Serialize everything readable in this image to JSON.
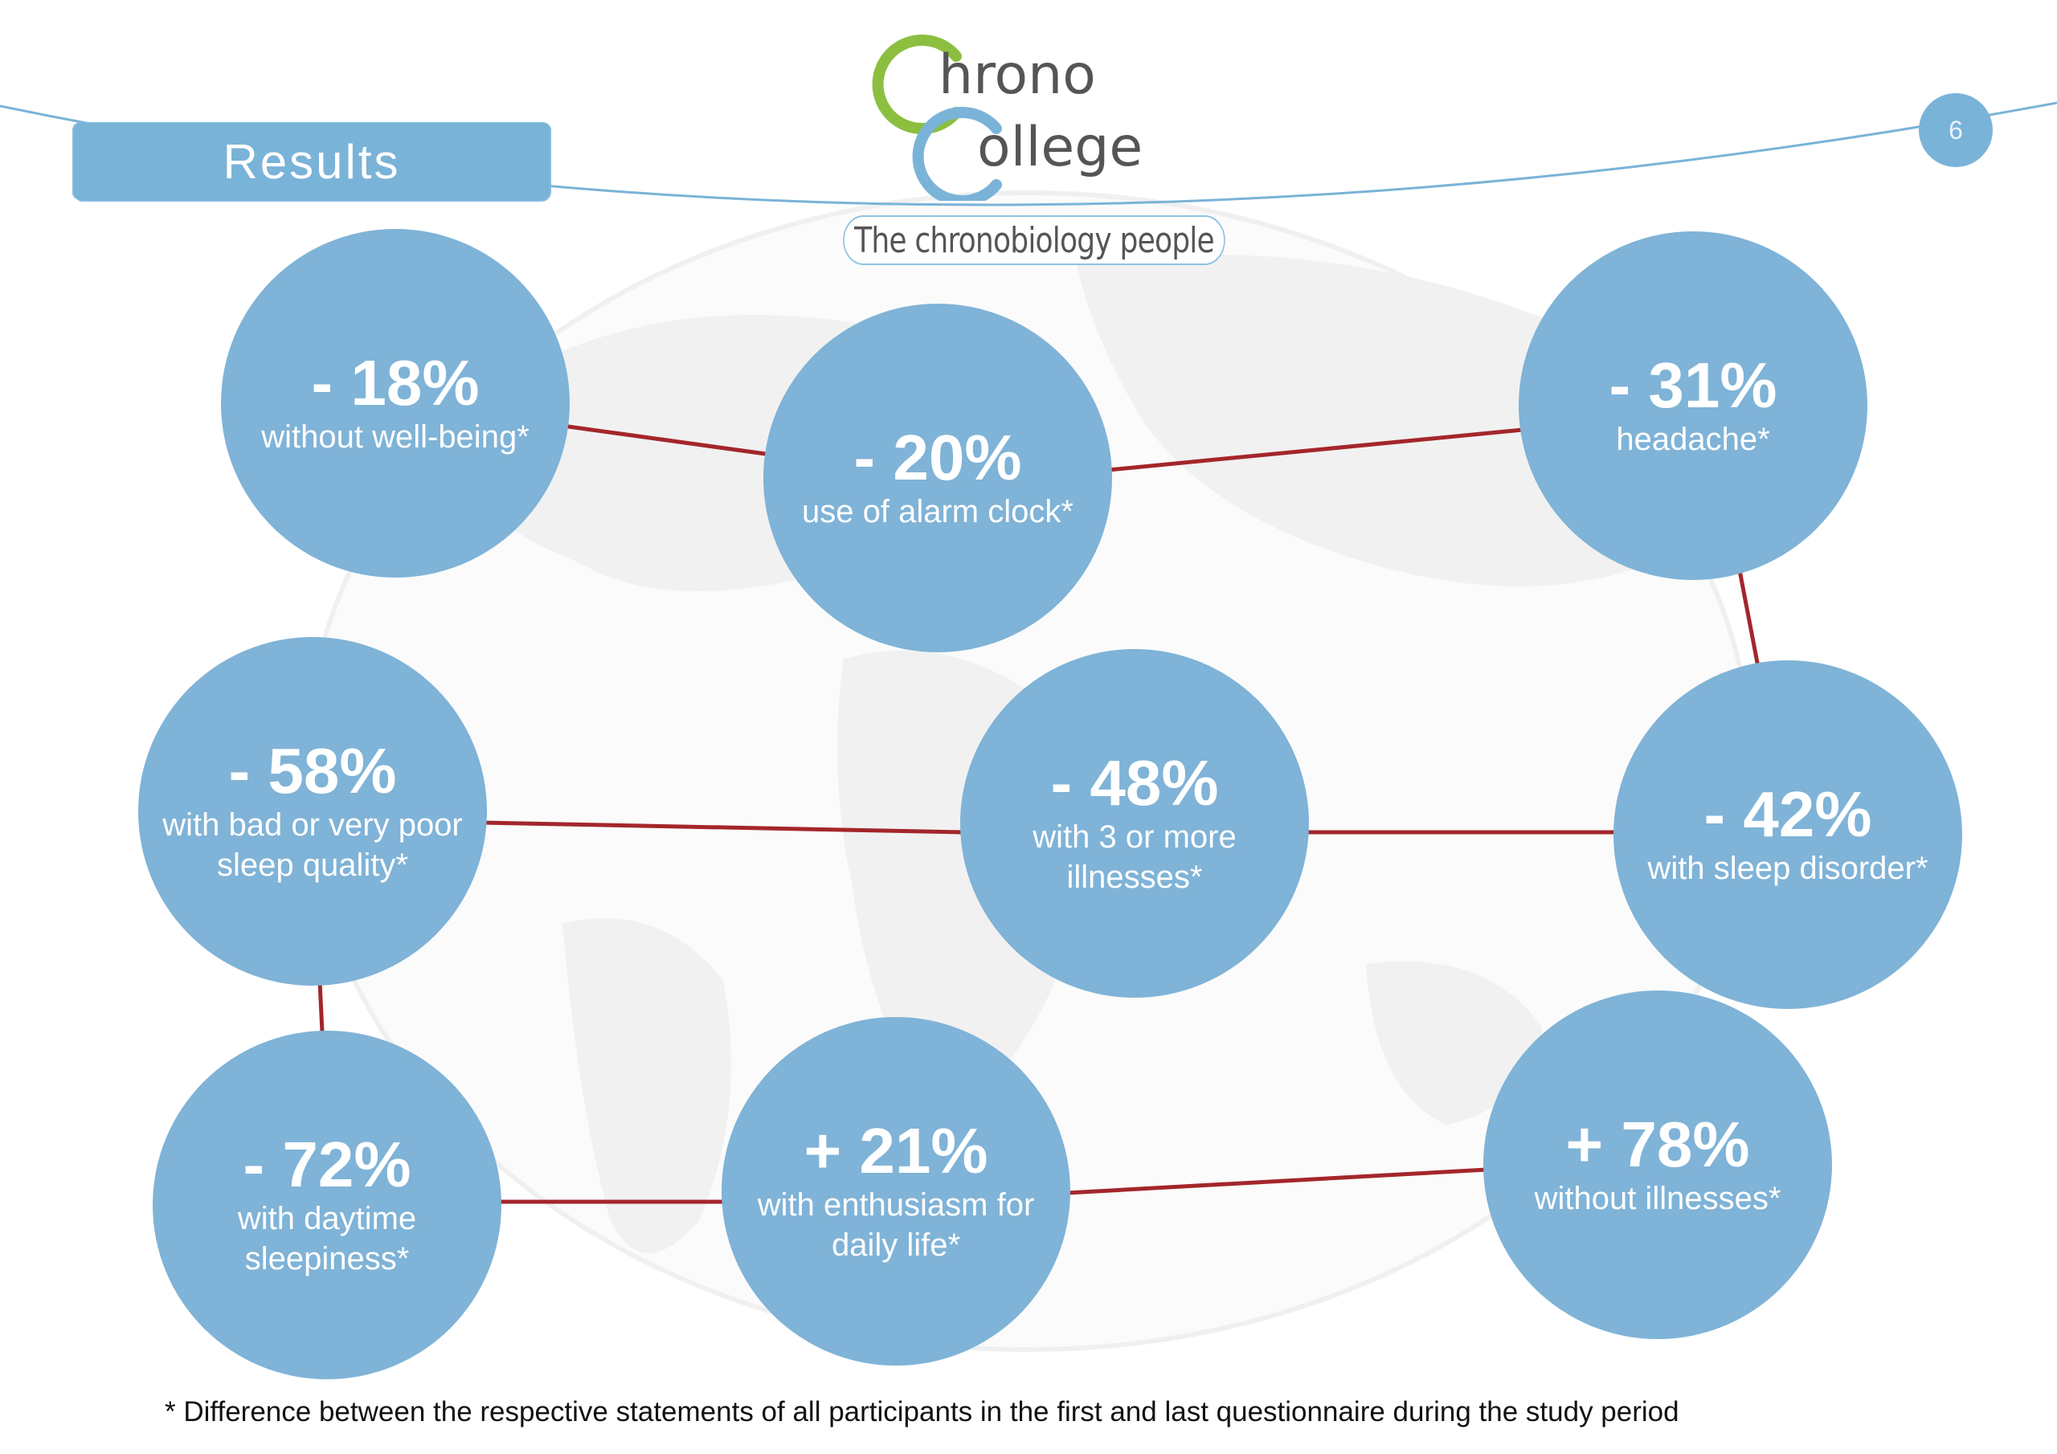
{
  "header": {
    "section_title": "Results",
    "page_number": "6",
    "logo": {
      "line1": "hrono",
      "line2": "ollege",
      "letter1": "C",
      "letter2": "C"
    },
    "tagline": "The chronobiology people"
  },
  "colors": {
    "bubble": "#7fb3d7",
    "connector": "#a3262b",
    "logo_green": "#8cbf3f",
    "logo_blue": "#7ab3d8",
    "header_curve": "#7ab3d8"
  },
  "results": [
    {
      "value": "- 18%",
      "label": "without well-being*"
    },
    {
      "value": "- 20%",
      "label": "use of alarm clock*"
    },
    {
      "value": "- 31%",
      "label": "headache*"
    },
    {
      "value": "- 58%",
      "label": "with bad or very poor sleep quality*"
    },
    {
      "value": "- 48%",
      "label": "with 3 or more illnesses*"
    },
    {
      "value": "- 42%",
      "label": "with sleep disorder*"
    },
    {
      "value": "- 72%",
      "label": "with daytime sleepiness*"
    },
    {
      "value": "+ 21%",
      "label": "with enthusiasm for daily life*"
    },
    {
      "value": "+ 78%",
      "label": "without illnesses*"
    }
  ],
  "footnote": "* Difference between the respective statements of all participants in the first and last questionnaire during the study period"
}
